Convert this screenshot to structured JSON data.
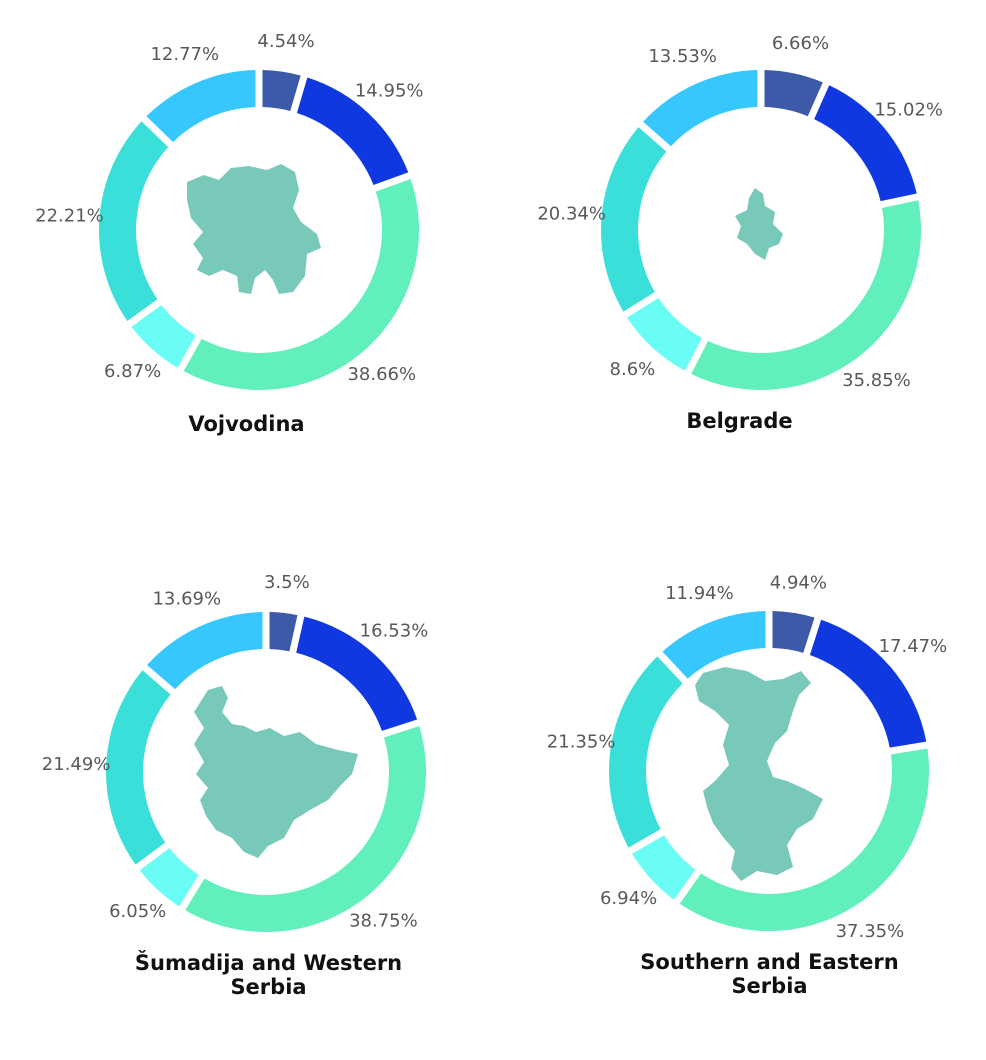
{
  "colors": [
    "#3D5AA8",
    "#0F38E0",
    "#61EFBB",
    "#6AFDF6",
    "#3BDFDA",
    "#36C7FE"
  ],
  "map_color": "#79C9BB",
  "chart_data": [
    {
      "type": "pie",
      "donut": true,
      "title": "Vojvodina",
      "title_lines": [
        "Vojvodina"
      ],
      "values": [
        4.54,
        14.95,
        38.66,
        6.87,
        22.21,
        12.77
      ],
      "labels": [
        "4.54%",
        "14.95%",
        "38.66%",
        "6.87%",
        "22.21%",
        "12.77%"
      ],
      "legend": "none"
    },
    {
      "type": "pie",
      "donut": true,
      "title": "Belgrade",
      "title_lines": [
        "Belgrade"
      ],
      "values": [
        6.66,
        15.02,
        35.85,
        8.6,
        20.34,
        13.53
      ],
      "labels": [
        "6.66%",
        "15.02%",
        "35.85%",
        "8.6%",
        "20.34%",
        "13.53%"
      ],
      "legend": "none"
    },
    {
      "type": "pie",
      "donut": true,
      "title": "Šumadija and Western Serbia",
      "title_lines": [
        "Šumadija and Western",
        "Serbia"
      ],
      "values": [
        3.5,
        16.53,
        38.75,
        6.05,
        21.49,
        13.69
      ],
      "labels": [
        "3.5%",
        "16.53%",
        "38.75%",
        "6.05%",
        "21.49%",
        "13.69%"
      ],
      "legend": "none"
    },
    {
      "type": "pie",
      "donut": true,
      "title": "Southern and Eastern Serbia",
      "title_lines": [
        "Southern and Eastern",
        "Serbia"
      ],
      "values": [
        4.94,
        17.47,
        37.35,
        6.94,
        21.35,
        11.94
      ],
      "labels": [
        "4.94%",
        "17.47%",
        "37.35%",
        "6.94%",
        "21.35%",
        "11.94%"
      ],
      "legend": "none"
    }
  ]
}
